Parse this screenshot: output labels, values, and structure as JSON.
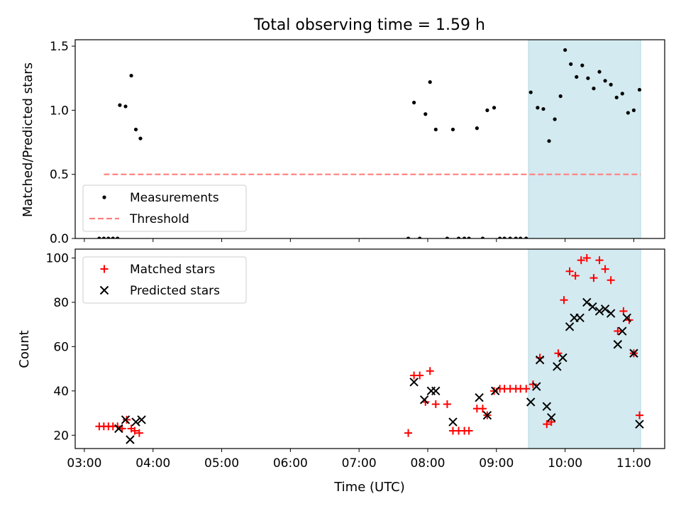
{
  "chart_data": [
    {
      "type": "scatter",
      "title": "Total observing time = 1.59 h",
      "ylabel": "Matched/Predicted stars",
      "xlim": [
        "02:52",
        "11:27"
      ],
      "ylim": [
        0,
        1.55
      ],
      "yticks": [
        "0.0",
        "0.5",
        "1.0",
        "1.5"
      ],
      "highlight_span": [
        "09:28",
        "11:06"
      ],
      "highlight_color": "#d3eaf0",
      "legend_position": "lower-left",
      "series": [
        {
          "name": "Measurements",
          "color": "#000000",
          "marker": "dot",
          "points": [
            [
              "03:13",
              0
            ],
            [
              "03:17",
              0
            ],
            [
              "03:21",
              0
            ],
            [
              "03:25",
              0
            ],
            [
              "03:29",
              0
            ],
            [
              "03:31",
              1.04
            ],
            [
              "03:36",
              1.03
            ],
            [
              "03:41",
              1.27
            ],
            [
              "03:45",
              0.85
            ],
            [
              "03:49",
              0.78
            ],
            [
              "07:43",
              0
            ],
            [
              "07:48",
              1.06
            ],
            [
              "07:53",
              0
            ],
            [
              "07:58",
              0.97
            ],
            [
              "08:02",
              1.22
            ],
            [
              "08:07",
              0.85
            ],
            [
              "08:17",
              0
            ],
            [
              "08:22",
              0.85
            ],
            [
              "08:27",
              0
            ],
            [
              "08:32",
              0
            ],
            [
              "08:36",
              0
            ],
            [
              "08:43",
              0.86
            ],
            [
              "08:48",
              0
            ],
            [
              "08:52",
              1.0
            ],
            [
              "08:58",
              1.02
            ],
            [
              "09:03",
              0
            ],
            [
              "09:07",
              0
            ],
            [
              "09:12",
              0
            ],
            [
              "09:17",
              0
            ],
            [
              "09:21",
              0
            ],
            [
              "09:26",
              0
            ],
            [
              "09:30",
              1.14
            ],
            [
              "09:36",
              1.02
            ],
            [
              "09:41",
              1.01
            ],
            [
              "09:46",
              0.76
            ],
            [
              "09:51",
              0.93
            ],
            [
              "09:56",
              1.11
            ],
            [
              "10:00",
              1.47
            ],
            [
              "10:05",
              1.36
            ],
            [
              "10:10",
              1.26
            ],
            [
              "10:15",
              1.35
            ],
            [
              "10:20",
              1.25
            ],
            [
              "10:25",
              1.17
            ],
            [
              "10:30",
              1.3
            ],
            [
              "10:35",
              1.23
            ],
            [
              "10:40",
              1.2
            ],
            [
              "10:45",
              1.1
            ],
            [
              "10:50",
              1.13
            ],
            [
              "10:55",
              0.98
            ],
            [
              "11:00",
              1.0
            ],
            [
              "11:05",
              1.16
            ]
          ]
        },
        {
          "name": "Threshold",
          "color": "#ff7f7f",
          "style": "dashed",
          "points": [
            [
              "03:17",
              0.5
            ],
            [
              "11:06",
              0.5
            ]
          ]
        }
      ]
    },
    {
      "type": "scatter",
      "xlabel": "Time (UTC)",
      "ylabel": "Count",
      "xlim": [
        "02:52",
        "11:27"
      ],
      "ylim": [
        14,
        104
      ],
      "yticks": [
        "20",
        "40",
        "60",
        "80",
        "100"
      ],
      "xticks": [
        "03:00",
        "04:00",
        "05:00",
        "06:00",
        "07:00",
        "08:00",
        "09:00",
        "10:00",
        "11:00"
      ],
      "highlight_span": [
        "09:28",
        "11:06"
      ],
      "highlight_color": "#d3eaf0",
      "legend_position": "upper-left",
      "series": [
        {
          "name": "Matched stars",
          "color": "#ff0000",
          "marker": "plus",
          "points": [
            [
              "03:13",
              24
            ],
            [
              "03:17",
              24
            ],
            [
              "03:21",
              24
            ],
            [
              "03:25",
              24
            ],
            [
              "03:29",
              24
            ],
            [
              "03:33",
              23
            ],
            [
              "03:37",
              27
            ],
            [
              "03:41",
              23
            ],
            [
              "03:44",
              22
            ],
            [
              "03:48",
              21
            ],
            [
              "07:43",
              21
            ],
            [
              "07:48",
              47
            ],
            [
              "07:53",
              47
            ],
            [
              "07:58",
              35
            ],
            [
              "08:02",
              49
            ],
            [
              "08:07",
              34
            ],
            [
              "08:17",
              34
            ],
            [
              "08:22",
              22
            ],
            [
              "08:27",
              22
            ],
            [
              "08:32",
              22
            ],
            [
              "08:36",
              22
            ],
            [
              "08:43",
              32
            ],
            [
              "08:48",
              32
            ],
            [
              "08:52",
              29
            ],
            [
              "08:58",
              40
            ],
            [
              "09:03",
              41
            ],
            [
              "09:07",
              41
            ],
            [
              "09:12",
              41
            ],
            [
              "09:17",
              41
            ],
            [
              "09:21",
              41
            ],
            [
              "09:26",
              41
            ],
            [
              "09:32",
              43
            ],
            [
              "09:38",
              55
            ],
            [
              "09:44",
              25
            ],
            [
              "09:48",
              26
            ],
            [
              "09:54",
              57
            ],
            [
              "09:59",
              81
            ],
            [
              "10:04",
              94
            ],
            [
              "10:09",
              92
            ],
            [
              "10:14",
              99
            ],
            [
              "10:19",
              100
            ],
            [
              "10:25",
              91
            ],
            [
              "10:30",
              99
            ],
            [
              "10:35",
              95
            ],
            [
              "10:40",
              90
            ],
            [
              "10:46",
              67
            ],
            [
              "10:51",
              76
            ],
            [
              "10:56",
              72
            ],
            [
              "11:00",
              57
            ],
            [
              "11:05",
              29
            ]
          ]
        },
        {
          "name": "Predicted stars",
          "color": "#000000",
          "marker": "x",
          "points": [
            [
              "03:30",
              23
            ],
            [
              "03:36",
              27
            ],
            [
              "03:40",
              18
            ],
            [
              "03:45",
              26
            ],
            [
              "03:50",
              27
            ],
            [
              "07:48",
              44
            ],
            [
              "07:57",
              36
            ],
            [
              "08:03",
              40
            ],
            [
              "08:07",
              40
            ],
            [
              "08:22",
              26
            ],
            [
              "08:45",
              37
            ],
            [
              "08:52",
              29
            ],
            [
              "08:59",
              40
            ],
            [
              "09:30",
              35
            ],
            [
              "09:35",
              42
            ],
            [
              "09:38",
              54
            ],
            [
              "09:44",
              33
            ],
            [
              "09:48",
              28
            ],
            [
              "09:53",
              51
            ],
            [
              "09:58",
              55
            ],
            [
              "10:04",
              69
            ],
            [
              "10:08",
              73
            ],
            [
              "10:13",
              73
            ],
            [
              "10:19",
              80
            ],
            [
              "10:24",
              78
            ],
            [
              "10:30",
              76
            ],
            [
              "10:35",
              77
            ],
            [
              "10:40",
              75
            ],
            [
              "10:46",
              61
            ],
            [
              "10:50",
              67
            ],
            [
              "10:54",
              73
            ],
            [
              "11:00",
              57
            ],
            [
              "11:05",
              25
            ]
          ]
        }
      ]
    }
  ]
}
